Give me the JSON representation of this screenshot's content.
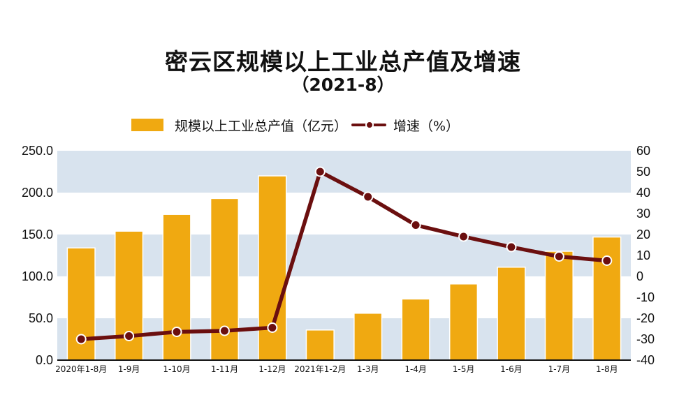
{
  "title": "密云区规模以上工业总产值及增速",
  "subtitle": "（2021-8）",
  "colors": {
    "bar": "#F0A911",
    "line": "#6B0F0F",
    "band": "#D8E3EE"
  },
  "chart_data": {
    "type": "bar+line",
    "categories": [
      "2020年1-8月",
      "1-9月",
      "1-10月",
      "1-11月",
      "1-12月",
      "2021年1-2月",
      "1-3月",
      "1-4月",
      "1-5月",
      "1-6月",
      "1-7月",
      "1-8月"
    ],
    "series": [
      {
        "name": "规模以上工业总产值（亿元）",
        "type": "bar",
        "axis": "left",
        "values": [
          134,
          154,
          174,
          193,
          220,
          36,
          56,
          73,
          91,
          111,
          130,
          147
        ]
      },
      {
        "name": "增速（%）",
        "type": "line",
        "axis": "right",
        "values": [
          -30,
          -28.5,
          -26.5,
          -26,
          -24.5,
          50,
          38,
          24.5,
          19,
          14,
          9.5,
          7.5
        ]
      }
    ],
    "left_axis": {
      "min": 0,
      "max": 250,
      "step": 50,
      "tick_labels": [
        "0.0",
        "50.0",
        "100.0",
        "150.0",
        "200.0",
        "250.0"
      ]
    },
    "right_axis": {
      "min": -40,
      "max": 60,
      "step": 10,
      "tick_labels": [
        "-40",
        "-30",
        "-20",
        "-10",
        "0",
        "10",
        "20",
        "30",
        "40",
        "50",
        "60"
      ]
    },
    "legend_position": "top",
    "alternating_bands": true
  }
}
